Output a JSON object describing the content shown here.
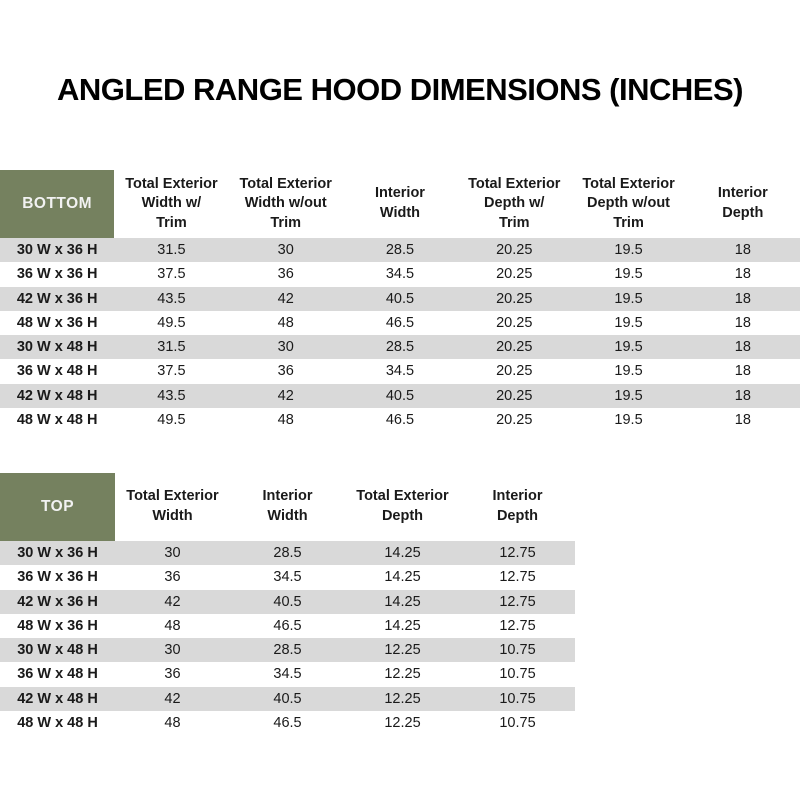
{
  "page": {
    "title": "ANGLED RANGE HOOD DIMENSIONS (INCHES)"
  },
  "colors": {
    "header_green": "#75815f",
    "stripe_gray": "#d9d9d9",
    "header_text_on_green": "#f2f2f2",
    "body_text": "#1a1a1a"
  },
  "tables": [
    {
      "id": "bottom",
      "label": "BOTTOM",
      "columns": [
        "Total Exterior\nWidth w/\nTrim",
        "Total Exterior\nWidth w/out\nTrim",
        "Interior\nWidth",
        "Total Exterior\nDepth w/\nTrim",
        "Total Exterior\nDepth w/out\nTrim",
        "Interior\nDepth"
      ],
      "rows": [
        {
          "size": "30 W x 36 H",
          "values": [
            "31.5",
            "30",
            "28.5",
            "20.25",
            "19.5",
            "18"
          ]
        },
        {
          "size": "36 W x 36 H",
          "values": [
            "37.5",
            "36",
            "34.5",
            "20.25",
            "19.5",
            "18"
          ]
        },
        {
          "size": "42 W x 36 H",
          "values": [
            "43.5",
            "42",
            "40.5",
            "20.25",
            "19.5",
            "18"
          ]
        },
        {
          "size": "48 W x 36 H",
          "values": [
            "49.5",
            "48",
            "46.5",
            "20.25",
            "19.5",
            "18"
          ]
        },
        {
          "size": "30 W x 48 H",
          "values": [
            "31.5",
            "30",
            "28.5",
            "20.25",
            "19.5",
            "18"
          ]
        },
        {
          "size": "36 W x 48 H",
          "values": [
            "37.5",
            "36",
            "34.5",
            "20.25",
            "19.5",
            "18"
          ]
        },
        {
          "size": "42 W x 48 H",
          "values": [
            "43.5",
            "42",
            "40.5",
            "20.25",
            "19.5",
            "18"
          ]
        },
        {
          "size": "48 W x 48 H",
          "values": [
            "49.5",
            "48",
            "46.5",
            "20.25",
            "19.5",
            "18"
          ]
        }
      ]
    },
    {
      "id": "top",
      "label": "TOP",
      "columns": [
        "Total Exterior\nWidth",
        "Interior\nWidth",
        "Total Exterior\nDepth",
        "Interior\nDepth"
      ],
      "rows": [
        {
          "size": "30 W x 36 H",
          "values": [
            "30",
            "28.5",
            "14.25",
            "12.75"
          ]
        },
        {
          "size": "36 W x 36 H",
          "values": [
            "36",
            "34.5",
            "14.25",
            "12.75"
          ]
        },
        {
          "size": "42 W x 36 H",
          "values": [
            "42",
            "40.5",
            "14.25",
            "12.75"
          ]
        },
        {
          "size": "48 W x 36 H",
          "values": [
            "48",
            "46.5",
            "14.25",
            "12.75"
          ]
        },
        {
          "size": "30 W x 48 H",
          "values": [
            "30",
            "28.5",
            "12.25",
            "10.75"
          ]
        },
        {
          "size": "36 W x 48 H",
          "values": [
            "36",
            "34.5",
            "12.25",
            "10.75"
          ]
        },
        {
          "size": "42 W x 48 H",
          "values": [
            "42",
            "40.5",
            "12.25",
            "10.75"
          ]
        },
        {
          "size": "48 W x 48 H",
          "values": [
            "48",
            "46.5",
            "12.25",
            "10.75"
          ]
        }
      ]
    }
  ]
}
